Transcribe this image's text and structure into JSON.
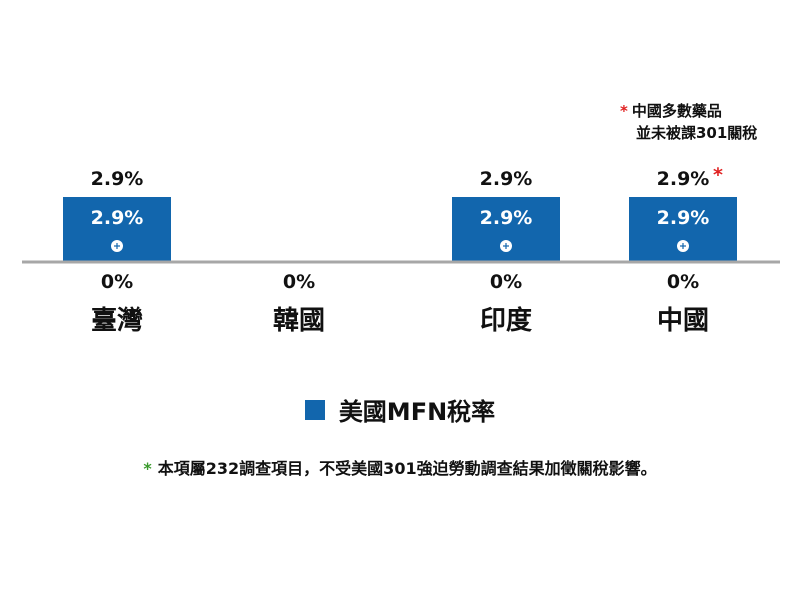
{
  "chart_data": {
    "type": "bar",
    "categories": [
      "臺灣",
      "韓國",
      "印度",
      "中國"
    ],
    "series": [
      {
        "name": "美國MFN稅率",
        "values": [
          2.9,
          0,
          2.9,
          2.9
        ],
        "top_labels": [
          "2.9%",
          "",
          "2.9%",
          "2.9%"
        ],
        "inner_labels": [
          "2.9%",
          "",
          "2.9%",
          "2.9%"
        ],
        "bottom_labels": [
          "0%",
          "0%",
          "0%",
          "0%"
        ]
      }
    ],
    "ylim": [
      0,
      2.9
    ],
    "grid": false,
    "legend": "bottom",
    "china_asterisk": "*"
  },
  "colors": {
    "bar": "#1266ad",
    "baseline": "#a7a7a7",
    "red_star": "#e02020",
    "green_star": "#3a9a2c"
  },
  "icons": {
    "bar_marker": "plus-circle-icon"
  },
  "notes": {
    "china_star": "*",
    "china_line1": "中國多數藥品",
    "china_line2": "並未被課301關稅",
    "footnote_star": "*",
    "footnote_text": "本項屬232調查項目，不受美國301強迫勞動調查結果加徵關稅影響。"
  },
  "legend": {
    "label": "美國MFN稅率"
  }
}
